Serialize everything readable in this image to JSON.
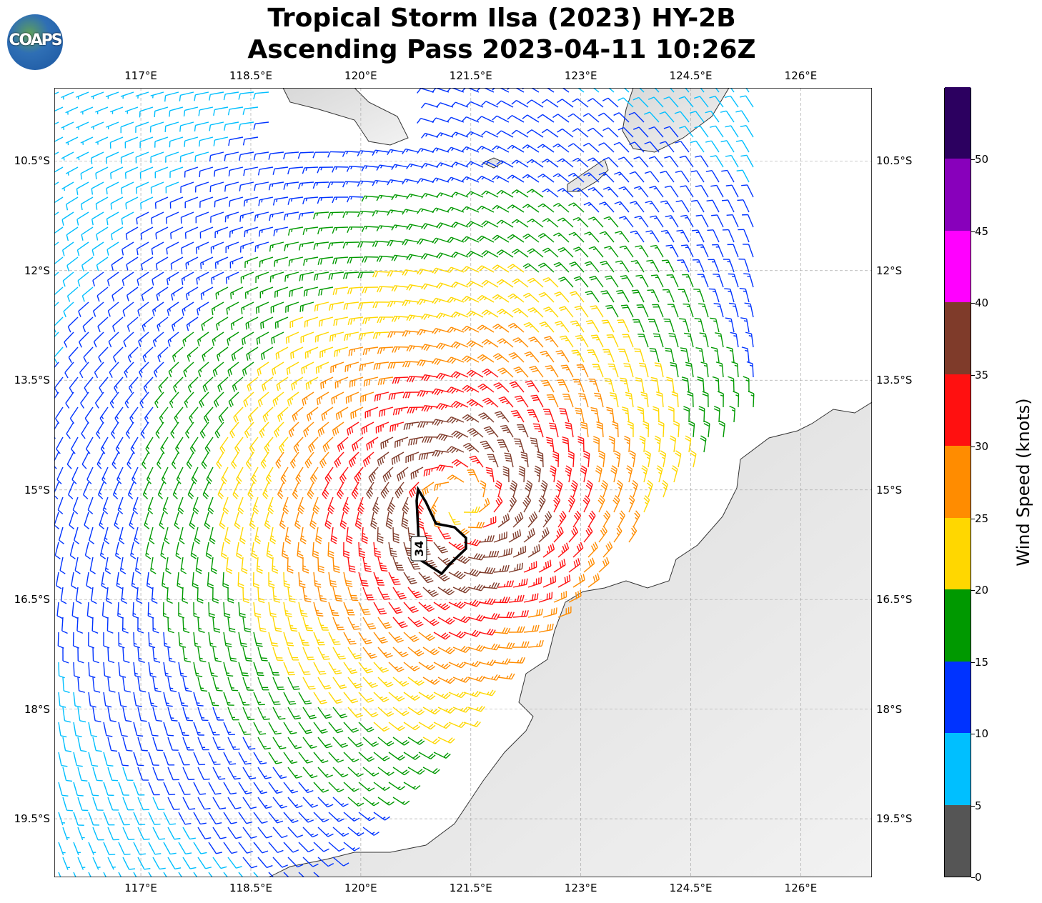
{
  "title": {
    "line1": "Tropical Storm Ilsa (2023) HY-2B",
    "line2": "Ascending Pass 2023-04-11 10:26Z"
  },
  "logo": {
    "text": "COAPS"
  },
  "map": {
    "lon_ticks": [
      "117°E",
      "118.5°E",
      "120°E",
      "121.5°E",
      "123°E",
      "124.5°E",
      "126°E"
    ],
    "lon_values": [
      117,
      118.5,
      120,
      121.5,
      123,
      124.5,
      126
    ],
    "lat_ticks": [
      "10.5°S",
      "12°S",
      "13.5°S",
      "15°S",
      "16.5°S",
      "18°S",
      "19.5°S"
    ],
    "lat_values": [
      10.5,
      12,
      13.5,
      15,
      16.5,
      18,
      19.5
    ],
    "extent": {
      "lon_min": 115.82,
      "lon_max": 126.97,
      "lat_min_s": 9.5,
      "lat_max_s": 20.3
    },
    "storm_center": {
      "lon": 121.35,
      "lat_s": 15.15
    },
    "contour_label": "34",
    "ocean_color": "#ffffff",
    "land_color": "#e6e6e6"
  },
  "colorbar": {
    "label": "Wind Speed (knots)",
    "ticks": [
      "0",
      "5",
      "10",
      "15",
      "20",
      "25",
      "30",
      "35",
      "40",
      "45",
      "50"
    ],
    "colors": [
      "#555555",
      "#00bfff",
      "#0033ff",
      "#009900",
      "#ffd700",
      "#ff8c00",
      "#ff1010",
      "#7f3b2a",
      "#ff00ff",
      "#8800bb",
      "#2c0060"
    ]
  },
  "chart_data": {
    "type": "wind_barbs",
    "units": "knots",
    "peak_wind_kt": 40,
    "radius_of_max_wind_deg": 0.8,
    "rotation": "clockwise (southern hemisphere)",
    "contour_kt": 34
  }
}
